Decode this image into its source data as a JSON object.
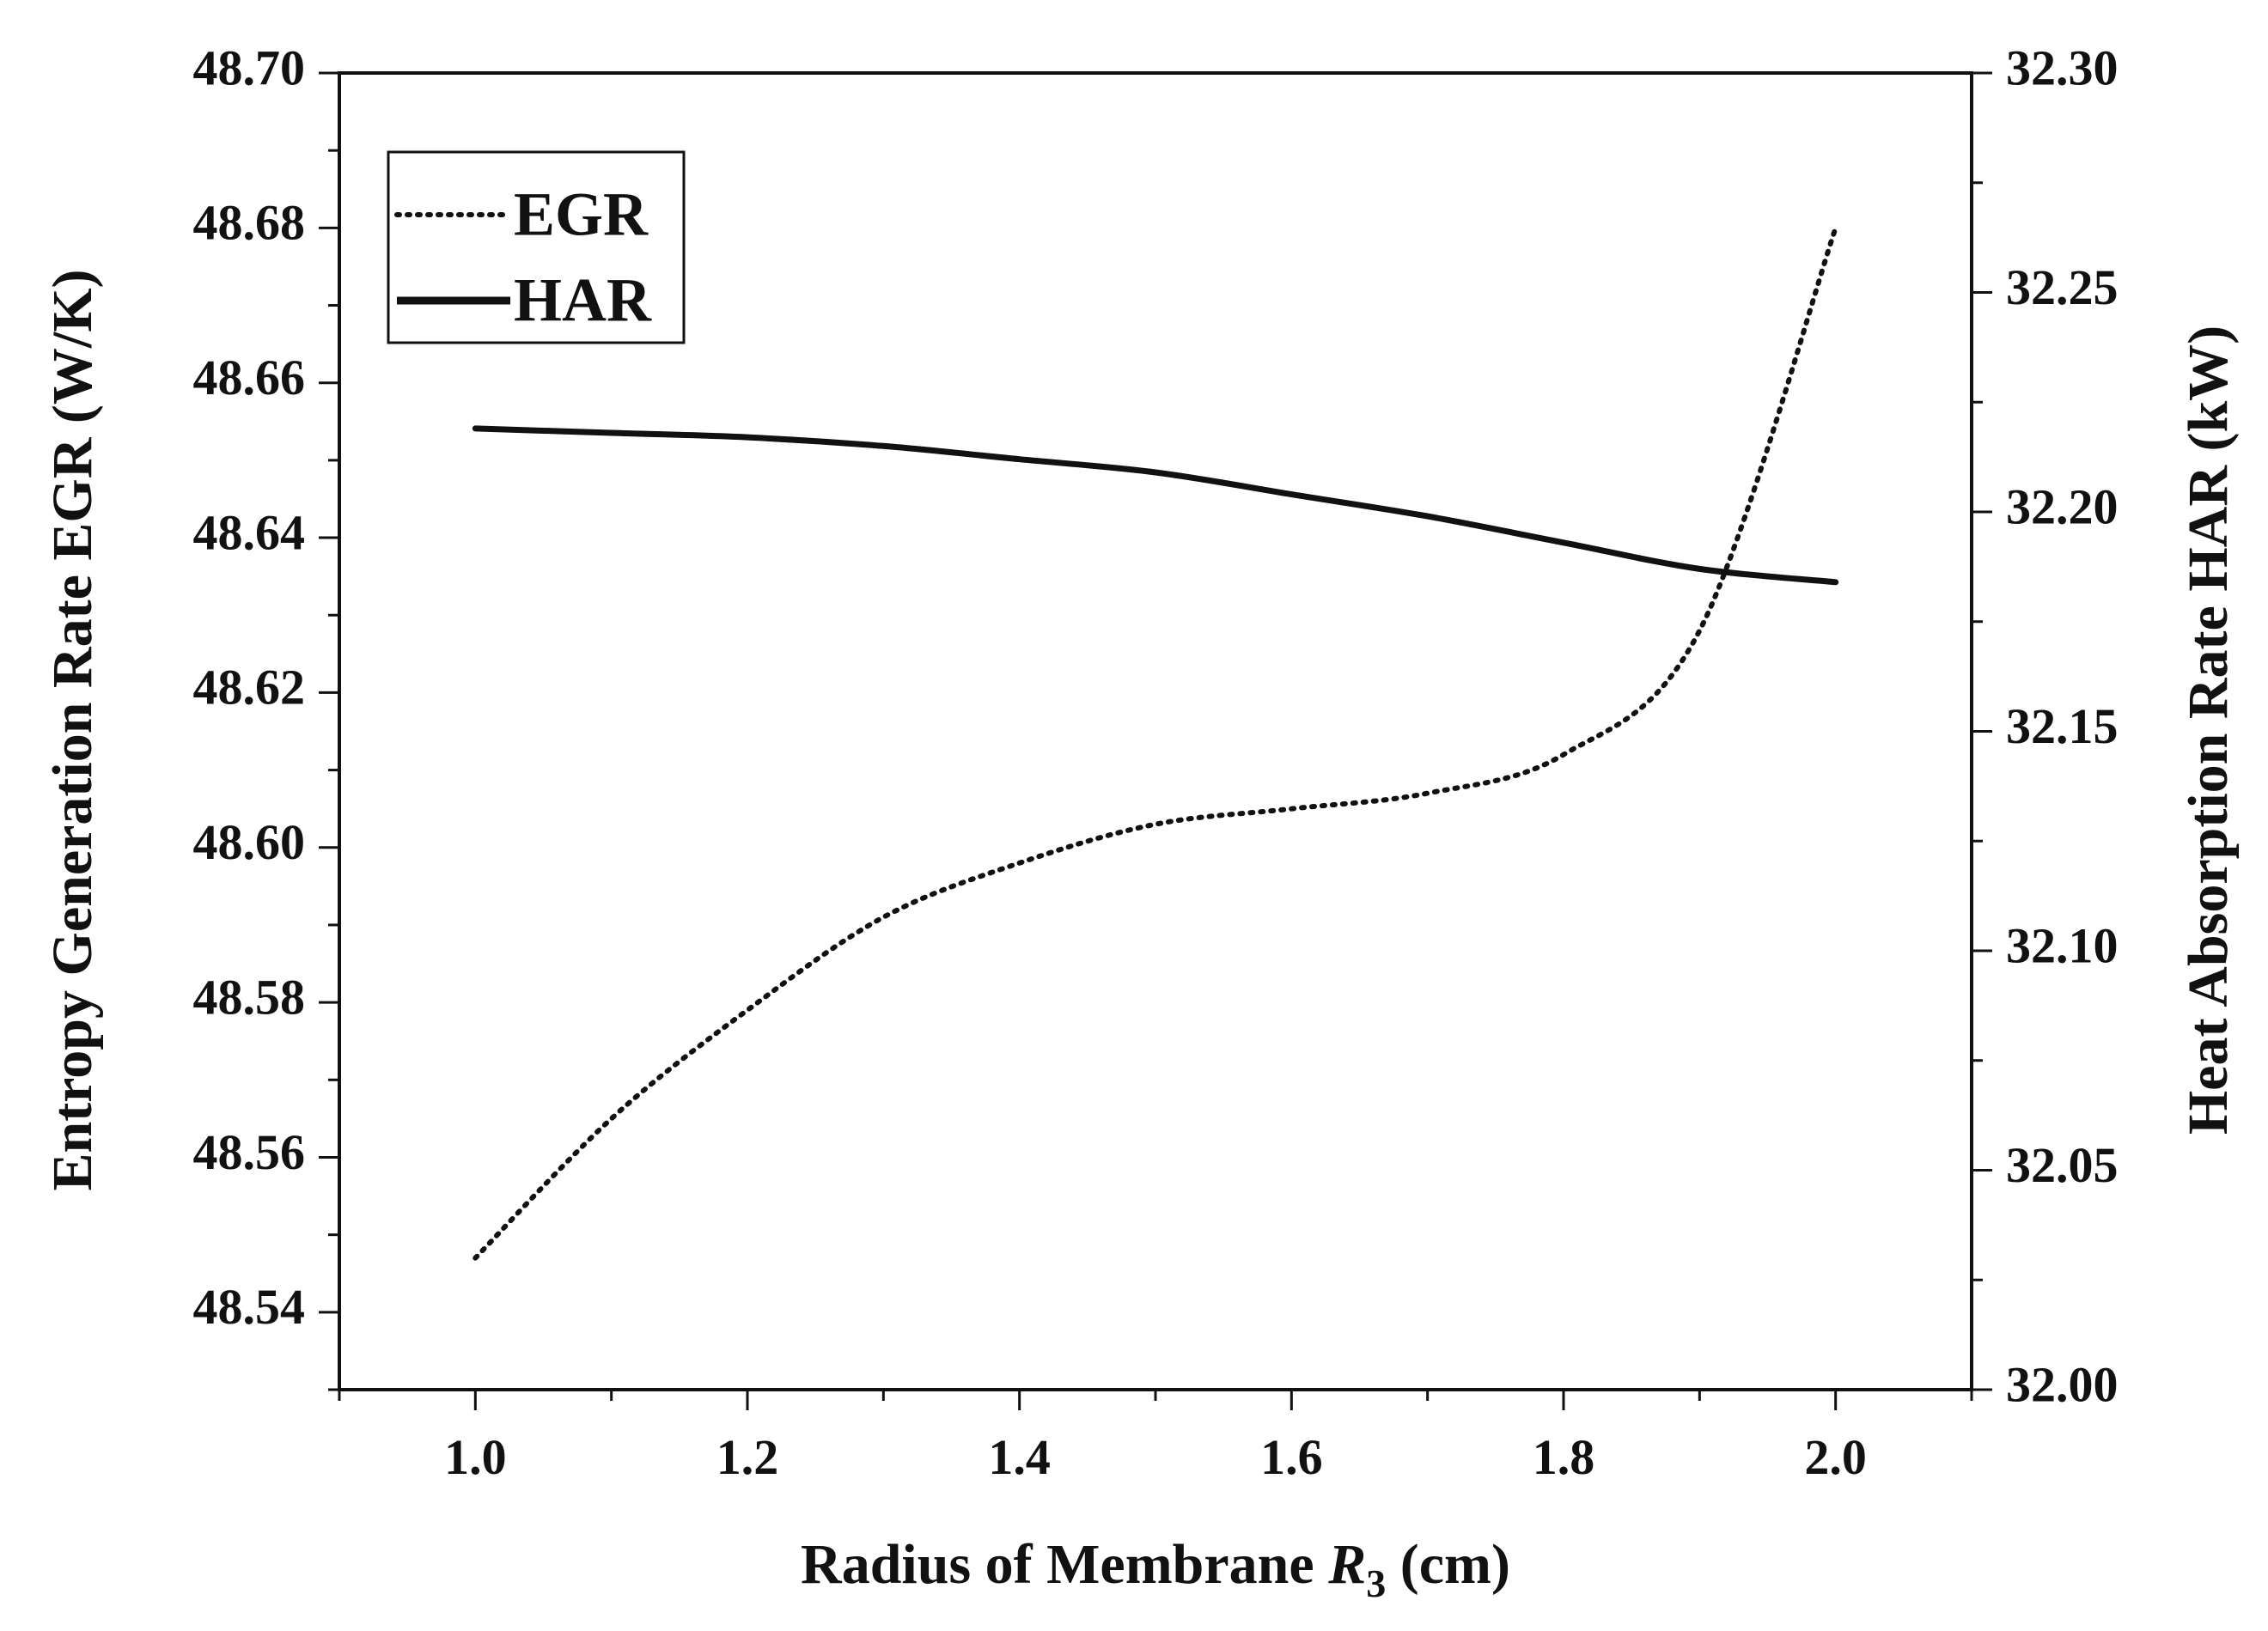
{
  "chart_data": {
    "type": "line",
    "title": "",
    "xlabel": "Radius of Membrane R3 (cm)",
    "xlabel_parts": {
      "prefix": "Radius of Membrane ",
      "var": "R",
      "sub": "3",
      "suffix": " (cm)"
    },
    "ylabel_left": "Entropy Generation Rate EGR (W/K)",
    "ylabel_right": "Heat Absorption Rate HAR (kW)",
    "xlim": [
      0.9,
      2.1
    ],
    "ylim_left": [
      48.53,
      48.7
    ],
    "ylim_right": [
      32.0,
      32.3
    ],
    "x_ticks": [
      "1.0",
      "1.2",
      "1.4",
      "1.6",
      "1.8",
      "2.0"
    ],
    "y_left_ticks": [
      "48.54",
      "48.56",
      "48.58",
      "48.60",
      "48.62",
      "48.64",
      "48.66",
      "48.68",
      "48.70"
    ],
    "y_right_ticks": [
      "32.00",
      "32.05",
      "32.10",
      "32.15",
      "32.20",
      "32.25",
      "32.30"
    ],
    "legend_position": "top-left",
    "series": [
      {
        "name": "EGR",
        "axis": "left",
        "style": "dotted",
        "x": [
          1.0,
          1.1,
          1.2,
          1.3,
          1.4,
          1.5,
          1.6,
          1.7,
          1.8,
          1.9,
          2.0
        ],
        "values": [
          48.547,
          48.565,
          48.579,
          48.591,
          48.598,
          48.603,
          48.605,
          48.607,
          48.612,
          48.628,
          48.68
        ]
      },
      {
        "name": "HAR",
        "axis": "right",
        "style": "solid",
        "x": [
          1.0,
          1.1,
          1.2,
          1.3,
          1.4,
          1.5,
          1.6,
          1.7,
          1.8,
          1.9,
          2.0
        ],
        "values": [
          32.219,
          32.218,
          32.217,
          32.215,
          32.212,
          32.209,
          32.204,
          32.199,
          32.193,
          32.187,
          32.184
        ]
      }
    ]
  }
}
